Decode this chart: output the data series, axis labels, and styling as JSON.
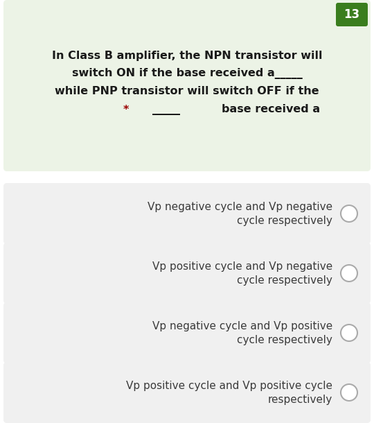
{
  "question_number": "13",
  "question_number_bg": "#3a7d1e",
  "question_number_color": "#ffffff",
  "question_text_line1": "In Class B amplifier, the NPN transistor will",
  "question_text_line2": "switch ON if the base received a_____",
  "question_text_line3": "while PNP transistor will switch OFF if the",
  "question_text_line4_star": "*",
  "question_text_line4_blank": "_____",
  "question_text_line4_rest": "base received a",
  "question_bg": "#ecf3e6",
  "question_text_color": "#1a1a1a",
  "star_color": "#990000",
  "option_bg": "#f0f0f0",
  "option_text_color": "#3a3a3a",
  "circle_edge_color": "#aaaaaa",
  "fig_bg": "#ffffff",
  "options_line1": [
    "Vp positive cycle and Vp positive cycle",
    "Vp negative cycle and Vp positive",
    "Vp positive cycle and Vp negative",
    "Vp negative cycle and Vp negative"
  ],
  "options_line2": [
    "respectively",
    "cycle respectively",
    "cycle respectively",
    "cycle respectively"
  ]
}
